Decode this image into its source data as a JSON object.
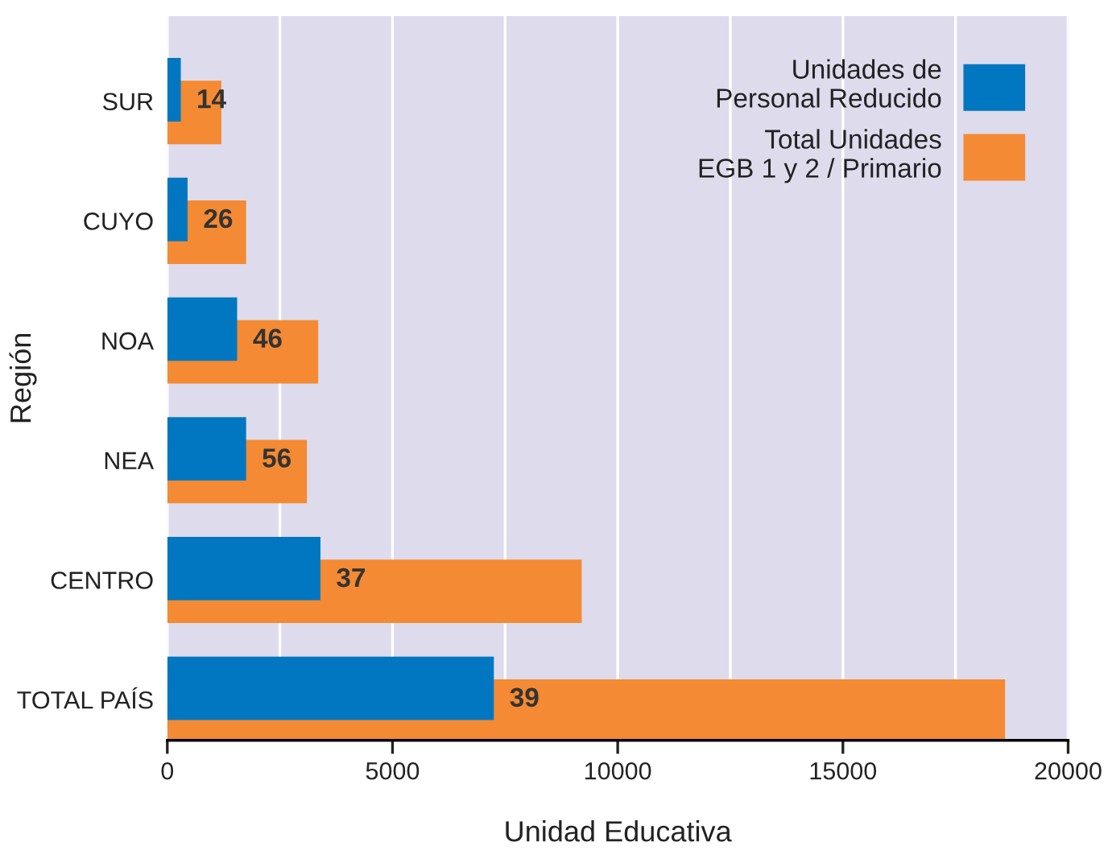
{
  "chart_data": {
    "type": "bar",
    "orientation": "horizontal",
    "xlabel": "Unidad Educativa",
    "ylabel": "Región",
    "categories": [
      "SUR",
      "CUYO",
      "NOA",
      "NEA",
      "CENTRO",
      "TOTAL PAÍS"
    ],
    "series": [
      {
        "name": "Unidades de\nPersonal Reducido",
        "color": "#0077c0",
        "values": [
          300,
          450,
          1550,
          1750,
          3400,
          7250
        ]
      },
      {
        "name": "Total Unidades\nEGB 1 y 2 / Primario",
        "color": "#f48a33",
        "values": [
          1200,
          1750,
          3350,
          3100,
          9200,
          18600
        ]
      }
    ],
    "xlim": [
      0,
      20000
    ],
    "xticks": [
      0,
      {
        "value": 2500,
        "label": null
      },
      5000,
      {
        "value": 7500,
        "label": null
      },
      10000,
      {
        "value": 12500,
        "label": null
      },
      15000,
      {
        "value": 17500,
        "label": null
      },
      20000
    ],
    "grid": "x",
    "legend": "top right",
    "annotations": [
      {
        "text": "14",
        "x": 300,
        "y": "SUR"
      },
      {
        "text": "26",
        "x": 450,
        "y": "CUYO"
      },
      {
        "text": "46",
        "x": 1550,
        "y": "NOA"
      },
      {
        "text": "56",
        "x": 1750,
        "y": "NEA"
      },
      {
        "text": "37",
        "x": 3400,
        "y": "CENTRO"
      },
      {
        "text": "39",
        "x": 7250,
        "y": "TOTAL PAÍS"
      }
    ]
  }
}
